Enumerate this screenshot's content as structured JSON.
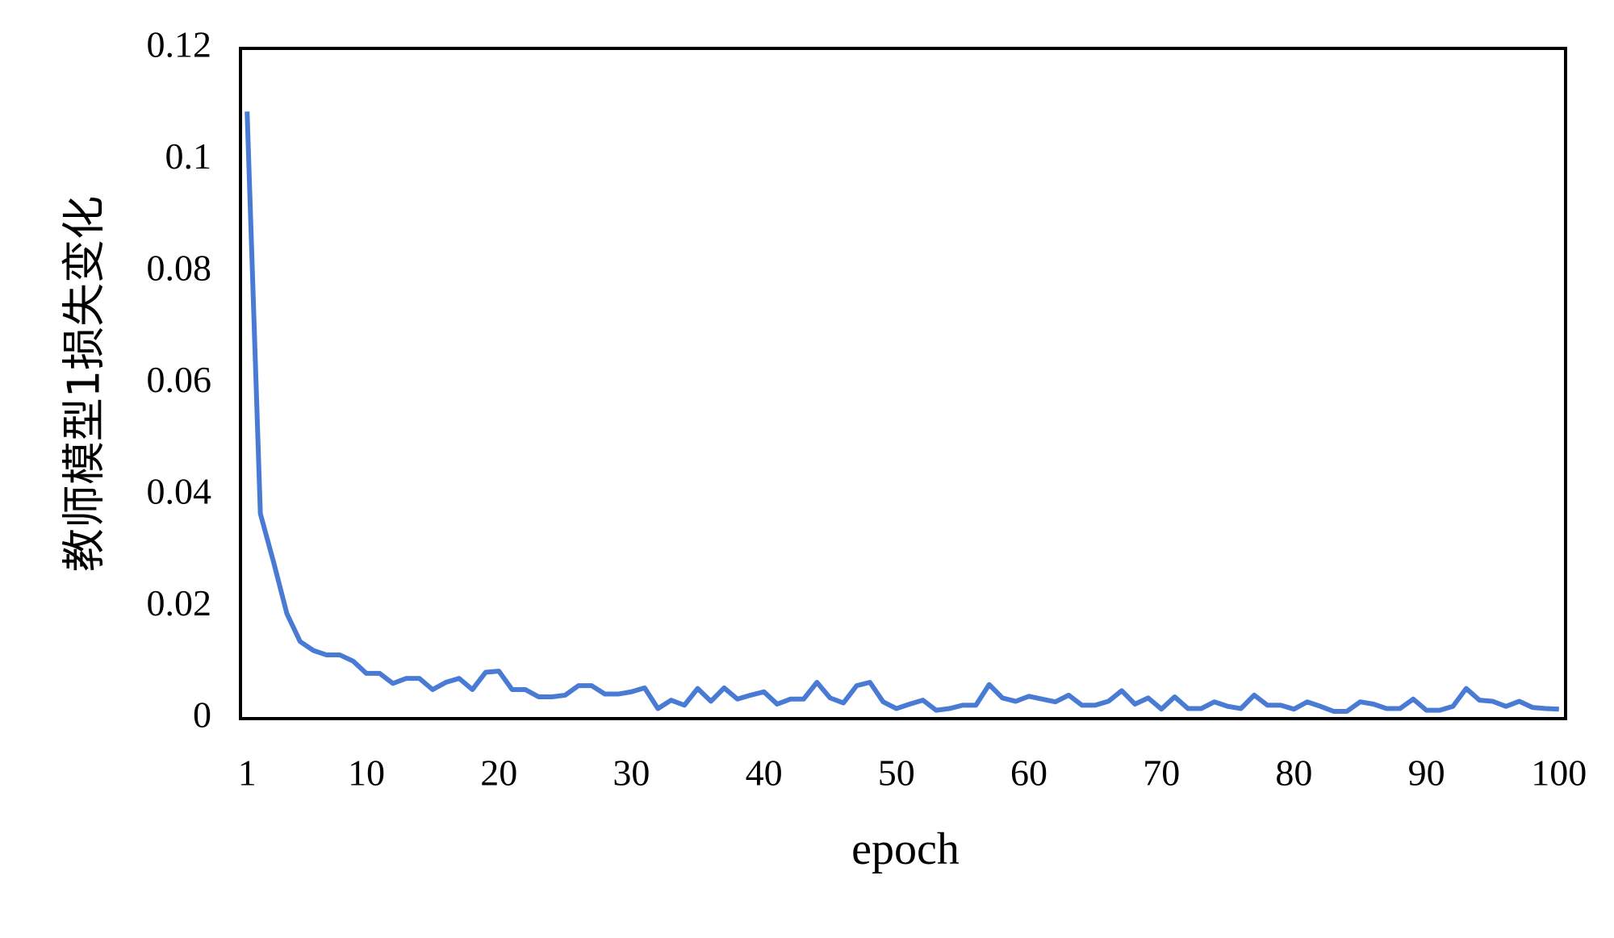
{
  "chart_data": {
    "type": "line",
    "ylabel": "教师模型1损失变化",
    "xlabel": "epoch",
    "x": [
      1,
      2,
      3,
      4,
      5,
      6,
      7,
      8,
      9,
      10,
      11,
      12,
      13,
      14,
      15,
      16,
      17,
      18,
      19,
      20,
      21,
      22,
      23,
      24,
      25,
      26,
      27,
      28,
      29,
      30,
      31,
      32,
      33,
      34,
      35,
      36,
      37,
      38,
      39,
      40,
      41,
      42,
      43,
      44,
      45,
      46,
      47,
      48,
      49,
      50,
      51,
      52,
      53,
      54,
      55,
      56,
      57,
      58,
      59,
      60,
      61,
      62,
      63,
      64,
      65,
      66,
      67,
      68,
      69,
      70,
      71,
      72,
      73,
      74,
      75,
      76,
      77,
      78,
      79,
      80,
      81,
      82,
      83,
      84,
      85,
      86,
      87,
      88,
      89,
      90,
      91,
      92,
      93,
      94,
      95,
      96,
      97,
      98,
      99,
      100
    ],
    "series": [
      {
        "color": "#4a7bd4",
        "values": [
          0.1087,
          0.0367,
          0.028,
          0.0188,
          0.0138,
          0.0122,
          0.0114,
          0.0114,
          0.0103,
          0.0081,
          0.0081,
          0.0063,
          0.0072,
          0.0072,
          0.0052,
          0.0065,
          0.0072,
          0.0052,
          0.0083,
          0.0085,
          0.0052,
          0.0052,
          0.0039,
          0.0039,
          0.0042,
          0.0059,
          0.0059,
          0.0044,
          0.0044,
          0.0048,
          0.0055,
          0.0018,
          0.0033,
          0.0024,
          0.0054,
          0.0031,
          0.0055,
          0.0035,
          0.0042,
          0.0048,
          0.0026,
          0.0035,
          0.0035,
          0.0065,
          0.0037,
          0.0028,
          0.0059,
          0.0065,
          0.003,
          0.0018,
          0.0026,
          0.0033,
          0.0015,
          0.0018,
          0.0024,
          0.0024,
          0.0061,
          0.0037,
          0.0031,
          0.004,
          0.0035,
          0.003,
          0.0042,
          0.0024,
          0.0024,
          0.0031,
          0.005,
          0.0026,
          0.0037,
          0.0017,
          0.0039,
          0.0018,
          0.0018,
          0.003,
          0.0022,
          0.0018,
          0.0042,
          0.0024,
          0.0024,
          0.0017,
          0.003,
          0.0022,
          0.0013,
          0.0013,
          0.003,
          0.0026,
          0.0018,
          0.0018,
          0.0035,
          0.0015,
          0.0015,
          0.0022,
          0.0054,
          0.0033,
          0.0031,
          0.0022,
          0.0031,
          0.002,
          0.0018,
          0.0017
        ]
      }
    ],
    "xlim": [
      0.5,
      100.5
    ],
    "xticks": [
      1,
      10,
      20,
      30,
      40,
      50,
      60,
      70,
      80,
      90,
      100
    ],
    "ylim": [
      0,
      0.12
    ],
    "yticks": [
      0,
      0.02,
      0.04,
      0.06,
      0.08,
      0.1,
      0.12
    ],
    "grid": false
  }
}
